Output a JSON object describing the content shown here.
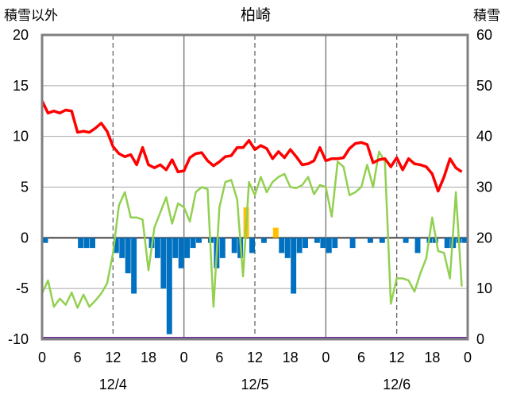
{
  "chart_data": {
    "type": "combo",
    "title": "柏崎",
    "left_axis_label": "積雪以外",
    "right_axis_label": "積雪",
    "left_ylim": [
      -10,
      20
    ],
    "left_yticks": [
      "20",
      "15",
      "10",
      "5",
      "0",
      "-5",
      "-10"
    ],
    "right_ylim": [
      0,
      60
    ],
    "right_yticks": [
      "60",
      "50",
      "40",
      "30",
      "20",
      "10",
      "0"
    ],
    "x_tick_labels": [
      "0",
      "6",
      "12",
      "18",
      "0",
      "6",
      "12",
      "18",
      "0",
      "6",
      "12",
      "18",
      "0"
    ],
    "x_date_labels": [
      "12/4",
      "12/5",
      "12/6"
    ],
    "x_range_hours": [
      0,
      72
    ],
    "grid": true,
    "colors": {
      "temperature": "#ff0000",
      "wind": "#92d050",
      "precip_neg": "#0070c0",
      "precip_pos": "#ffc000",
      "snow": "#7030a0",
      "frame": "#808080"
    },
    "series": [
      {
        "key": "temperature",
        "axis": "left",
        "style": "line",
        "values": [
          13.5,
          12.3,
          12.5,
          12.3,
          12.6,
          12.5,
          10.4,
          10.5,
          10.4,
          10.8,
          11.3,
          10.5,
          9.0,
          8.3,
          8.0,
          8.2,
          7.2,
          8.9,
          7.2,
          6.9,
          7.2,
          6.7,
          7.7,
          6.5,
          6.6,
          7.9,
          8.3,
          8.4,
          7.6,
          7.1,
          7.5,
          8.0,
          8.1,
          8.9,
          8.9,
          9.6,
          8.7,
          9.1,
          8.8,
          7.8,
          8.5,
          7.9,
          8.7,
          8.0,
          7.2,
          7.3,
          7.6,
          8.9,
          7.6,
          7.8,
          7.8,
          7.9,
          8.8,
          9.3,
          9.4,
          9.2,
          7.4,
          7.7,
          7.8,
          7.0,
          7.9,
          6.7,
          7.8,
          7.3,
          7.2,
          7.0,
          6.3,
          4.6,
          6.0,
          7.8,
          6.9,
          6.5
        ]
      },
      {
        "key": "wind",
        "axis": "left",
        "style": "line",
        "values": [
          -5.5,
          -4.2,
          -6.8,
          -6.0,
          -6.6,
          -5.4,
          -6.9,
          -5.6,
          -6.8,
          -6.2,
          -5.5,
          -4.5,
          -1.5,
          3.2,
          4.5,
          2.0,
          2.0,
          1.8,
          -3.2,
          1.0,
          2.5,
          4.0,
          1.4,
          3.4,
          3.0,
          1.6,
          4.5,
          5.0,
          4.8,
          -6.8,
          3.0,
          5.5,
          5.7,
          3.8,
          -3.8,
          5.5,
          4.2,
          6.0,
          4.5,
          5.5,
          6.0,
          6.3,
          5.0,
          4.9,
          5.2,
          6.0,
          4.3,
          5.2,
          5.0,
          2.1,
          7.5,
          7.0,
          4.2,
          4.5,
          5.0,
          7.2,
          5.0,
          8.5,
          7.5,
          -6.5,
          -4.0,
          -4.0,
          -4.2,
          -5.3,
          -3.5,
          -2.0,
          2.0,
          -1.3,
          -1.5,
          -4.0,
          4.5,
          -4.8
        ]
      },
      {
        "key": "precipitation",
        "axis": "left",
        "style": "bar",
        "values": [
          -0.5,
          0,
          0,
          0,
          0,
          0,
          -1.0,
          -1.0,
          -1.0,
          0,
          0,
          0,
          -1.5,
          -2.0,
          -3.5,
          -5.5,
          0,
          0,
          -1.0,
          -2.0,
          -5.0,
          -9.5,
          -2.0,
          -3.0,
          -2.0,
          -1.0,
          -0.5,
          0,
          -0.5,
          -3.0,
          -2.0,
          0,
          -1.5,
          -2.0,
          3.0,
          -1.5,
          0,
          -0.5,
          0,
          1.0,
          -1.5,
          -2.0,
          -5.5,
          -1.5,
          -1.0,
          0,
          -0.5,
          -1.0,
          -1.5,
          -1.0,
          0,
          0,
          -1.0,
          0,
          0,
          -0.5,
          0,
          -0.5,
          0,
          0,
          0,
          -0.5,
          0,
          -1.5,
          0,
          -0.5,
          -0.5,
          0,
          -1.0,
          -1.0,
          -0.5,
          -0.5
        ]
      },
      {
        "key": "snow_depth",
        "axis": "right",
        "style": "line",
        "values": [
          0,
          0
        ]
      }
    ]
  }
}
